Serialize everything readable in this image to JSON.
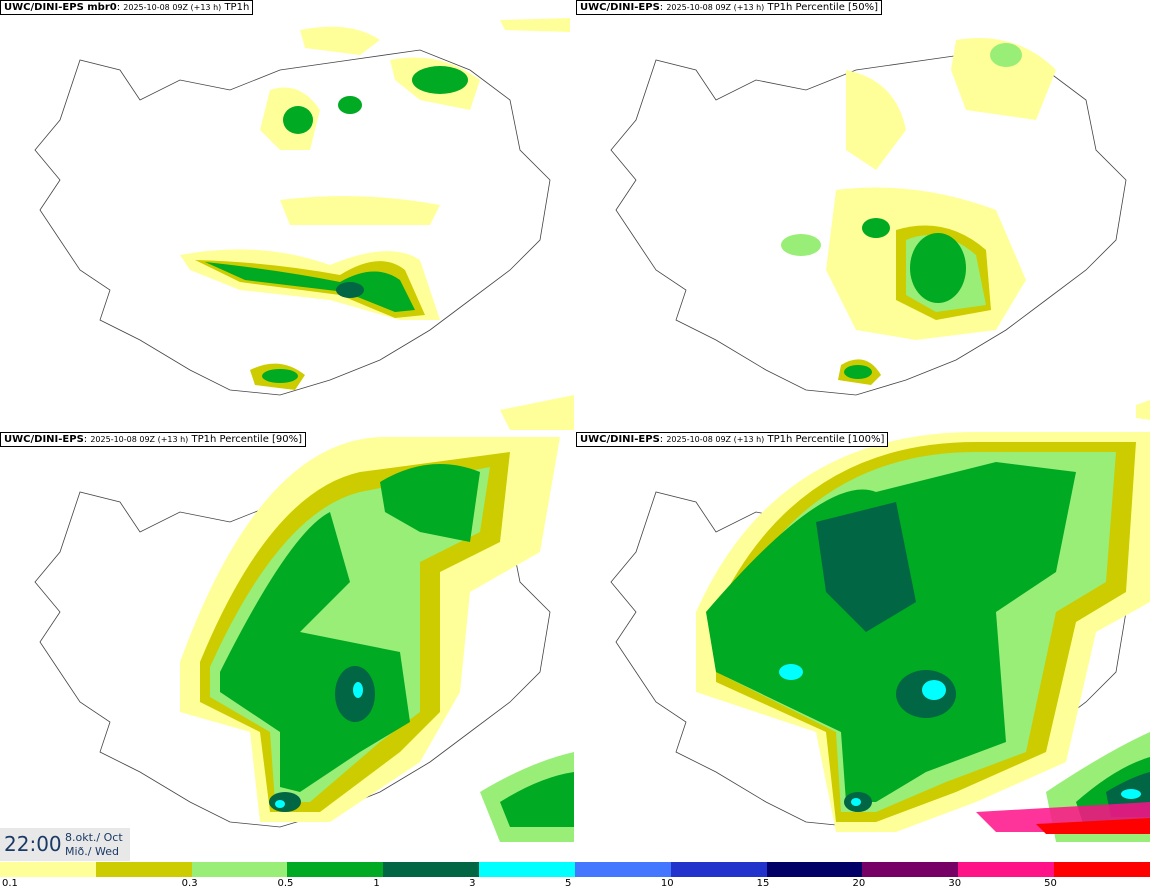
{
  "panels": [
    {
      "model": "UWC/DINI-EPS mbr0",
      "run": "2025-10-08 09Z (+13 h)",
      "field": "TP1h"
    },
    {
      "model": "UWC/DINI-EPS",
      "run": "2025-10-08 09Z (+13 h)",
      "field": "TP1h Percentile [50%]"
    },
    {
      "model": "UWC/DINI-EPS",
      "run": "2025-10-08 09Z (+13 h)",
      "field": "TP1h Percentile [90%]"
    },
    {
      "model": "UWC/DINI-EPS",
      "run": "2025-10-08 09Z (+13 h)",
      "field": "TP1h Percentile [100%]"
    }
  ],
  "valid_time": {
    "time": "22:00",
    "date_line1": "8.okt./ Oct",
    "date_line2": "Mið./ Wed"
  },
  "legend": {
    "colors": [
      "#ffff99",
      "#cccc00",
      "#99ee77",
      "#00aa22",
      "#006644",
      "#00ffff",
      "#4477ff",
      "#2233cc",
      "#000066",
      "#770066",
      "#ff1188",
      "#ff0000"
    ],
    "ticks": [
      "0.1",
      "0.3",
      "0.5",
      "1",
      "3",
      "5",
      "10",
      "15",
      "20",
      "30",
      "50"
    ]
  }
}
